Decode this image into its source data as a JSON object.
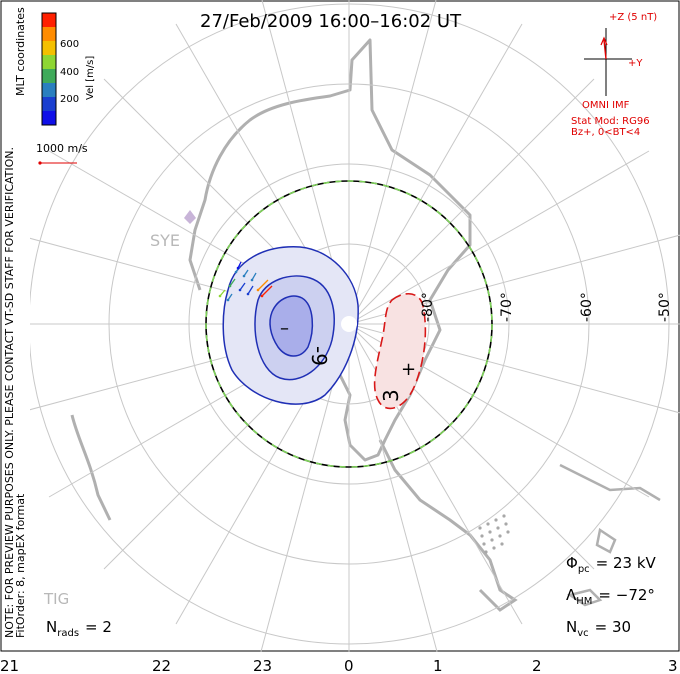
{
  "title": "27/Feb/2009  16:00–16:02  UT",
  "side_note": "NOTE: FOR PREVIEW PURPOSES ONLY. PLEASE CONTACT VT-SD STAFF FOR VERIFICATION.",
  "fit_info": "FitOrder: 8, mapEX format",
  "coord_system": "MLT coordinates",
  "colorbar": {
    "label": "Vel [m/s]",
    "ticks": [
      "600",
      "400",
      "200"
    ],
    "colors": [
      "#ff2000",
      "#ff8c00",
      "#f4c000",
      "#8ed633",
      "#3faa5a",
      "#2a7fbf",
      "#1a3fd0",
      "#1010e8"
    ]
  },
  "vector_scale": "1000 m/s",
  "imf": {
    "z_label": "+Z (5 nT)",
    "y_label": "+Y",
    "source": "OMNI IMF",
    "model_line1": "Stat Mod: RG96",
    "model_line2": "Bz+, 0<BT<4"
  },
  "lat_labels": [
    "-80°",
    "-70°",
    "-60°",
    "-50°"
  ],
  "mlt_labels": [
    "21",
    "22",
    "23",
    "0",
    "1",
    "2",
    "3"
  ],
  "radar_labels": [
    "SYE",
    "TIG"
  ],
  "contour_labels": {
    "negative": "-9",
    "positive": "3"
  },
  "extrema": {
    "minimum": "–",
    "maximum": "+"
  },
  "stats": {
    "phi_pc": {
      "label": "Φ",
      "sub": "pc",
      "value": "= 23 kV"
    },
    "lambda_hm": {
      "label": "Λ",
      "sub": "HM",
      "value": "= −72°"
    },
    "n_vc": {
      "label": "N",
      "sub": "vc",
      "value": "= 30"
    },
    "n_rads": {
      "label": "N",
      "sub": "rads",
      "value": "= 2"
    }
  }
}
